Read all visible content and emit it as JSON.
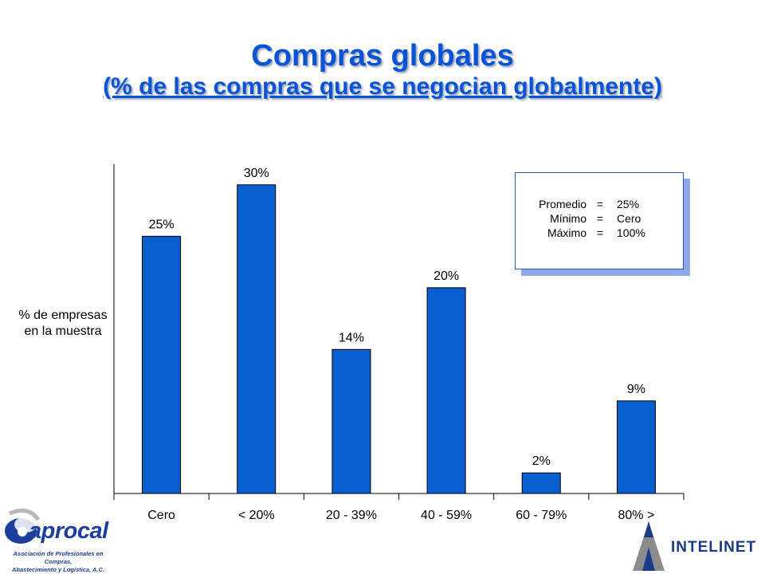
{
  "page": {
    "title": "Compras globales",
    "subtitle": "(% de las compras que se negocian globalmente)"
  },
  "chart_data": {
    "type": "bar",
    "categories": [
      "Cero",
      "< 20%",
      "20 - 39%",
      "40 - 59%",
      "60 - 79%",
      "80% >"
    ],
    "values": [
      25,
      30,
      14,
      20,
      2,
      9
    ],
    "value_labels": [
      "25%",
      "30%",
      "14%",
      "20%",
      "2%",
      "9%"
    ],
    "ylabel": "% de empresas en la muestra",
    "ylabel_lines": [
      "% de empresas",
      "en la muestra"
    ],
    "ylim": [
      0,
      32
    ],
    "grid": false,
    "colors": {
      "bar": "#0a5fd0",
      "bar_border": "#000000",
      "title": "#0a53d6"
    }
  },
  "stats_box": {
    "rows": [
      {
        "label": "Promedio",
        "eq": "=",
        "value": "25%"
      },
      {
        "label": "Mínimo",
        "eq": "=",
        "value": "Cero"
      },
      {
        "label": "Máximo",
        "eq": "=",
        "value": "100%"
      }
    ]
  },
  "logos": {
    "left_name": "aprocal",
    "left_caption_line1": "Asociación de Profesionales en Compras,",
    "left_caption_line2": "Abastecimiento y Logística, A.C.",
    "right_name": "INTELINET"
  }
}
